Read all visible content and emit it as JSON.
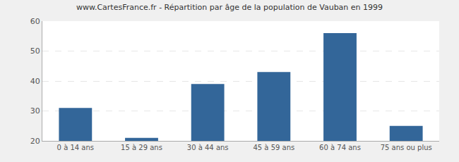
{
  "chart_data": {
    "type": "bar",
    "title": "www.CartesFrance.fr - Répartition par âge de la population de Vauban en 1999",
    "categories": [
      "0 à 14 ans",
      "15 à 29 ans",
      "30 à 44 ans",
      "45 à 59 ans",
      "60 à 74 ans",
      "75 ans ou plus"
    ],
    "values": [
      31,
      21,
      39,
      43,
      56,
      25
    ],
    "color": "#336699",
    "ylim": [
      20,
      60
    ],
    "yticks": [
      20,
      30,
      40,
      50,
      60
    ],
    "grid": true
  }
}
